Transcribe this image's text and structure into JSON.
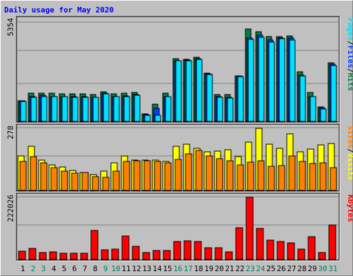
{
  "chart_data": {
    "type": "bar",
    "title": "Daily usage for May 2020",
    "categories": [
      "1",
      "2",
      "3",
      "4",
      "5",
      "6",
      "7",
      "8",
      "9",
      "10",
      "11",
      "12",
      "13",
      "14",
      "15",
      "16",
      "17",
      "18",
      "19",
      "20",
      "21",
      "22",
      "23",
      "24",
      "25",
      "26",
      "27",
      "28",
      "29",
      "30",
      "31"
    ],
    "weekend_days": [
      "2",
      "3",
      "9",
      "10",
      "16",
      "17",
      "23",
      "24",
      "30",
      "31"
    ],
    "colors": {
      "hits": "#008040",
      "files": "#0040ff",
      "pages": "#00e0ff",
      "visits": "#ffff00",
      "sites": "#ff8000",
      "kbytes": "#ff0000",
      "weekend_text": "#00805c",
      "weekday_text": "#000000",
      "title": "#0000ff"
    },
    "panels": [
      {
        "name": "top",
        "ymax": 5354,
        "ymax_label": "5354",
        "right_label": {
          "parts": [
            "Pages",
            "/",
            "Files",
            "/",
            "Hits"
          ],
          "colors": [
            "#00e0ff",
            "#000000",
            "#0040ff",
            "#000000",
            "#008040"
          ]
        },
        "series": [
          {
            "name": "Hits",
            "color": "#008040",
            "values": [
              1130,
              1520,
              1540,
              1520,
              1510,
              1490,
              1500,
              1460,
              1620,
              1490,
              1520,
              1570,
              400,
              920,
              1520,
              3380,
              3360,
              3460,
              2630,
              1440,
              1460,
              2460,
              5000,
              4840,
              4580,
              4600,
              4640,
              2680,
              1570,
              800,
              3160
            ]
          },
          {
            "name": "Files",
            "color": "#0040ff",
            "values": [
              1120,
              1330,
              1400,
              1350,
              1350,
              1350,
              1330,
              1320,
              1520,
              1350,
              1370,
              1440,
              380,
              720,
              1350,
              3300,
              3310,
              3400,
              2560,
              1330,
              1300,
              2470,
              4500,
              4660,
              4400,
              4510,
              4500,
              2510,
              1350,
              730,
              3100
            ]
          },
          {
            "name": "Pages",
            "color": "#00e0ff",
            "values": [
              1100,
              1300,
              1360,
              1330,
              1330,
              1320,
              1310,
              1300,
              1500,
              1330,
              1360,
              1420,
              330,
              330,
              1330,
              3290,
              3290,
              3360,
              2530,
              1300,
              1280,
              2440,
              4430,
              4560,
              4300,
              4470,
              4420,
              2480,
              1330,
              660,
              3040
            ]
          }
        ]
      },
      {
        "name": "middle",
        "ymax": 278,
        "ymax_label": "278",
        "right_label": {
          "parts": [
            "Sites",
            "/",
            "Visits"
          ],
          "colors": [
            "#ff8000",
            "#000000",
            "#ffff00"
          ]
        },
        "series": [
          {
            "name": "Visits",
            "color": "#ffff00",
            "values": [
              155,
              196,
              136,
              113,
              104,
              90,
              80,
              71,
              85,
              123,
              153,
              135,
              136,
              136,
              130,
              197,
              205,
              187,
              172,
              177,
              183,
              152,
              215,
              278,
              205,
              188,
              252,
              173,
              186,
              202,
              210
            ]
          },
          {
            "name": "Sites",
            "color": "#ff8000",
            "values": [
              128,
              150,
              122,
              103,
              86,
              78,
              79,
              63,
              58,
              86,
              128,
              132,
              132,
              130,
              124,
              139,
              162,
              178,
              154,
              143,
              131,
              115,
              125,
              132,
              109,
              111,
              153,
              130,
              119,
              122,
              101
            ]
          }
        ]
      },
      {
        "name": "bottom",
        "ymax": 222026,
        "ymax_label": "222026",
        "right_label": {
          "parts": [
            "KBytes"
          ],
          "colors": [
            "#ff0000"
          ]
        },
        "series": [
          {
            "name": "KBytes",
            "color": "#ff0000",
            "values": [
              29000,
              40000,
              25000,
              28000,
              23000,
              23000,
              22000,
              103000,
              35000,
              36000,
              84000,
              46000,
              24000,
              32000,
              32000,
              63000,
              67000,
              65000,
              42000,
              42000,
              28000,
              112000,
              222026,
              110000,
              68000,
              64000,
              58000,
              38000,
              82000,
              25000,
              124000
            ]
          }
        ]
      }
    ]
  }
}
